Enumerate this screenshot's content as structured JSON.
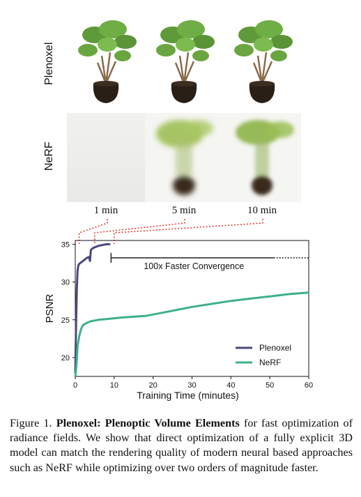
{
  "rows": {
    "top_label": "Plenoxel",
    "bottom_label": "NeRF"
  },
  "times": [
    "1 min",
    "5 min",
    "10 min"
  ],
  "chart_data": {
    "type": "line",
    "xlabel": "Training Time (minutes)",
    "ylabel": "PSNR",
    "xlim": [
      0,
      60
    ],
    "ylim": [
      17.5,
      35.5
    ],
    "xticks": [
      0,
      10,
      20,
      30,
      40,
      50,
      60
    ],
    "yticks": [
      20,
      25,
      30,
      35
    ],
    "annotation": "100x Faster Convergence",
    "legend_position": "bottom-right",
    "series": [
      {
        "name": "Plenoxel",
        "color": "#4a4880",
        "x": [
          0,
          0.2,
          0.4,
          0.6,
          0.8,
          1.0,
          1.5,
          2.0,
          2.5,
          3.0,
          3.5,
          3.8,
          4.0,
          4.3,
          4.6,
          5.0,
          6.0,
          7.0,
          8.0,
          9.0
        ],
        "y": [
          18.0,
          24.0,
          29.0,
          31.5,
          32.2,
          32.4,
          32.6,
          32.8,
          33.0,
          33.2,
          33.3,
          32.8,
          34.2,
          34.4,
          34.5,
          34.6,
          34.8,
          34.9,
          35.0,
          35.0
        ]
      },
      {
        "name": "NeRF",
        "color": "#3db08a",
        "x": [
          0,
          0.3,
          0.6,
          1.0,
          1.5,
          2.0,
          3.0,
          4.0,
          5.0,
          6.0,
          8.0,
          10.0,
          12.0,
          15.0,
          18.0,
          20.0,
          25.0,
          30.0,
          35.0,
          40.0,
          45.0,
          50.0,
          55.0,
          60.0
        ],
        "y": [
          17.5,
          19.0,
          21.5,
          22.8,
          23.8,
          24.3,
          24.6,
          24.8,
          24.9,
          25.0,
          25.1,
          25.2,
          25.3,
          25.4,
          25.5,
          25.7,
          26.2,
          26.7,
          27.1,
          27.5,
          27.8,
          28.1,
          28.4,
          28.6
        ]
      }
    ]
  },
  "caption": {
    "prefix": "Figure 1. ",
    "bold": "Plenoxel: Plenoptic Volume Elements",
    "rest": " for fast optimization of radiance fields. We show that direct optimization of a fully explicit 3D model can match the rendering quality of modern neural based approaches such as NeRF while optimizing over two orders of magnitude faster."
  }
}
